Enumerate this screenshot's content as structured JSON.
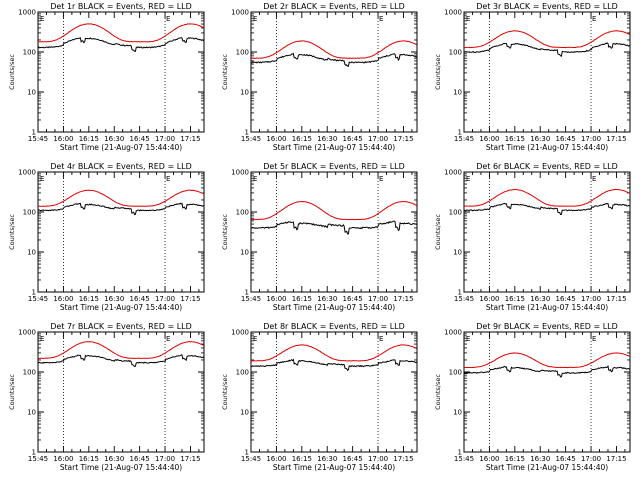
{
  "chart_data": [
    {
      "type": "line",
      "title": "Det 1r BLACK = Events, RED = LLD",
      "ylabel": "Counts/sec",
      "xlabel": "Start Time (21-Aug-07 15:44:40)",
      "x_tick_labels": [
        "15:45",
        "16:00",
        "16:15",
        "16:30",
        "16:45",
        "17:00",
        "17:15"
      ],
      "x_ticks_min": [
        0,
        15,
        30,
        45,
        60,
        75,
        90
      ],
      "xlim": [
        0,
        98
      ],
      "y_scale": "log",
      "ylim": [
        1,
        1000
      ],
      "y_tick_labels": [
        "1",
        "10",
        "100",
        "1000"
      ],
      "marker_times_min": [
        15,
        75
      ],
      "marker_label": "E",
      "series": [
        {
          "name": "BLACK",
          "color": "#000000",
          "base": 130,
          "amp": 1.7,
          "dip": 0.2,
          "noise": 0.06
        },
        {
          "name": "RED",
          "color": "#e00000",
          "base": 180,
          "amp": 2.8,
          "dip": 0,
          "noise": 0.02
        }
      ]
    },
    {
      "type": "line",
      "title": "Det 2r BLACK = Events, RED = LLD",
      "ylabel": "Counts/sec",
      "xlabel": "Start Time (21-Aug-07 15:44:40)",
      "x_tick_labels": [
        "15:45",
        "16:00",
        "16:15",
        "16:30",
        "16:45",
        "17:00",
        "17:15"
      ],
      "x_ticks_min": [
        0,
        15,
        30,
        45,
        60,
        75,
        90
      ],
      "xlim": [
        0,
        98
      ],
      "y_scale": "log",
      "ylim": [
        1,
        1000
      ],
      "y_tick_labels": [
        "1",
        "10",
        "100",
        "1000"
      ],
      "marker_times_min": [
        15,
        75
      ],
      "marker_label": "E",
      "series": [
        {
          "name": "BLACK",
          "color": "#000000",
          "base": 55,
          "amp": 1.55,
          "dip": 0.22,
          "noise": 0.07
        },
        {
          "name": "RED",
          "color": "#e00000",
          "base": 70,
          "amp": 2.7,
          "dip": 0,
          "noise": 0.02
        }
      ]
    },
    {
      "type": "line",
      "title": "Det 3r BLACK = Events, RED = LLD",
      "ylabel": "Counts/sec",
      "xlabel": "Start Time (21-Aug-07 15:44:40)",
      "x_tick_labels": [
        "15:45",
        "16:00",
        "16:15",
        "16:30",
        "16:45",
        "17:00",
        "17:15"
      ],
      "x_ticks_min": [
        0,
        15,
        30,
        45,
        60,
        75,
        90
      ],
      "xlim": [
        0,
        98
      ],
      "y_scale": "log",
      "ylim": [
        1,
        1000
      ],
      "y_tick_labels": [
        "1",
        "10",
        "100",
        "1000"
      ],
      "marker_times_min": [
        15,
        75
      ],
      "marker_label": "E",
      "series": [
        {
          "name": "BLACK",
          "color": "#000000",
          "base": 100,
          "amp": 1.6,
          "dip": 0.2,
          "noise": 0.06
        },
        {
          "name": "RED",
          "color": "#e00000",
          "base": 130,
          "amp": 2.6,
          "dip": 0,
          "noise": 0.02
        }
      ]
    },
    {
      "type": "line",
      "title": "Det 4r BLACK = Events, RED = LLD",
      "ylabel": "Counts/sec",
      "xlabel": "Start Time (21-Aug-07 15:44:40)",
      "x_tick_labels": [
        "15:45",
        "16:00",
        "16:15",
        "16:30",
        "16:45",
        "17:00",
        "17:15"
      ],
      "x_ticks_min": [
        0,
        15,
        30,
        45,
        60,
        75,
        90
      ],
      "xlim": [
        0,
        98
      ],
      "y_scale": "log",
      "ylim": [
        1,
        1000
      ],
      "y_tick_labels": [
        "1",
        "10",
        "100",
        "1000"
      ],
      "marker_times_min": [
        15,
        75
      ],
      "marker_label": "E",
      "series": [
        {
          "name": "BLACK",
          "color": "#000000",
          "base": 110,
          "amp": 1.4,
          "dip": 0.22,
          "noise": 0.06
        },
        {
          "name": "RED",
          "color": "#e00000",
          "base": 140,
          "amp": 2.5,
          "dip": 0,
          "noise": 0.02
        }
      ]
    },
    {
      "type": "line",
      "title": "Det 5r BLACK = Events, RED = LLD",
      "ylabel": "Counts/sec",
      "xlabel": "Start Time (21-Aug-07 15:44:40)",
      "x_tick_labels": [
        "15:45",
        "16:00",
        "16:15",
        "16:30",
        "16:45",
        "17:00",
        "17:15"
      ],
      "x_ticks_min": [
        0,
        15,
        30,
        45,
        60,
        75,
        90
      ],
      "xlim": [
        0,
        98
      ],
      "y_scale": "log",
      "ylim": [
        1,
        1000
      ],
      "y_tick_labels": [
        "1",
        "10",
        "100",
        "1000"
      ],
      "marker_times_min": [
        15,
        75
      ],
      "marker_label": "E",
      "series": [
        {
          "name": "BLACK",
          "color": "#000000",
          "base": 40,
          "amp": 1.3,
          "dip": 0.3,
          "noise": 0.08
        },
        {
          "name": "RED",
          "color": "#e00000",
          "base": 65,
          "amp": 2.8,
          "dip": 0,
          "noise": 0.02
        }
      ]
    },
    {
      "type": "line",
      "title": "Det 6r BLACK = Events, RED = LLD",
      "ylabel": "Counts/sec",
      "xlabel": "Start Time (21-Aug-07 15:44:40)",
      "x_tick_labels": [
        "15:45",
        "16:00",
        "16:15",
        "16:30",
        "16:45",
        "17:00",
        "17:15"
      ],
      "x_ticks_min": [
        0,
        15,
        30,
        45,
        60,
        75,
        90
      ],
      "xlim": [
        0,
        98
      ],
      "y_scale": "log",
      "ylim": [
        1,
        1000
      ],
      "y_tick_labels": [
        "1",
        "10",
        "100",
        "1000"
      ],
      "marker_times_min": [
        15,
        75
      ],
      "marker_label": "E",
      "series": [
        {
          "name": "BLACK",
          "color": "#000000",
          "base": 110,
          "amp": 1.4,
          "dip": 0.2,
          "noise": 0.06
        },
        {
          "name": "RED",
          "color": "#e00000",
          "base": 140,
          "amp": 2.6,
          "dip": 0,
          "noise": 0.02
        }
      ]
    },
    {
      "type": "line",
      "title": "Det 7r BLACK = Events, RED = LLD",
      "ylabel": "Counts/sec",
      "xlabel": "Start Time (21-Aug-07 15:44:40)",
      "x_tick_labels": [
        "15:45",
        "16:00",
        "16:15",
        "16:30",
        "16:45",
        "17:00",
        "17:15"
      ],
      "x_ticks_min": [
        0,
        15,
        30,
        45,
        60,
        75,
        90
      ],
      "xlim": [
        0,
        98
      ],
      "y_scale": "log",
      "ylim": [
        1,
        1000
      ],
      "y_tick_labels": [
        "1",
        "10",
        "100",
        "1000"
      ],
      "marker_times_min": [
        15,
        75
      ],
      "marker_label": "E",
      "series": [
        {
          "name": "BLACK",
          "color": "#000000",
          "base": 170,
          "amp": 1.5,
          "dip": 0.2,
          "noise": 0.06
        },
        {
          "name": "RED",
          "color": "#e00000",
          "base": 220,
          "amp": 2.6,
          "dip": 0,
          "noise": 0.02
        }
      ]
    },
    {
      "type": "line",
      "title": "Det 8r BLACK = Events, RED = LLD",
      "ylabel": "Counts/sec",
      "xlabel": "Start Time (21-Aug-07 15:44:40)",
      "x_tick_labels": [
        "15:45",
        "16:00",
        "16:15",
        "16:30",
        "16:45",
        "17:00",
        "17:15"
      ],
      "x_ticks_min": [
        0,
        15,
        30,
        45,
        60,
        75,
        90
      ],
      "xlim": [
        0,
        98
      ],
      "y_scale": "log",
      "ylim": [
        1,
        1000
      ],
      "y_tick_labels": [
        "1",
        "10",
        "100",
        "1000"
      ],
      "marker_times_min": [
        15,
        75
      ],
      "marker_label": "E",
      "series": [
        {
          "name": "BLACK",
          "color": "#000000",
          "base": 140,
          "amp": 1.35,
          "dip": 0.2,
          "noise": 0.06
        },
        {
          "name": "RED",
          "color": "#e00000",
          "base": 190,
          "amp": 2.5,
          "dip": 0,
          "noise": 0.02
        }
      ]
    },
    {
      "type": "line",
      "title": "Det 9r BLACK = Events, RED = LLD",
      "ylabel": "Counts/sec",
      "xlabel": "Start Time (21-Aug-07 15:44:40)",
      "x_tick_labels": [
        "15:45",
        "16:00",
        "16:15",
        "16:30",
        "16:45",
        "17:00",
        "17:15"
      ],
      "x_ticks_min": [
        0,
        15,
        30,
        45,
        60,
        75,
        90
      ],
      "xlim": [
        0,
        98
      ],
      "y_scale": "log",
      "ylim": [
        1,
        1000
      ],
      "y_tick_labels": [
        "1",
        "10",
        "100",
        "1000"
      ],
      "marker_times_min": [
        15,
        75
      ],
      "marker_label": "E",
      "series": [
        {
          "name": "BLACK",
          "color": "#000000",
          "base": 95,
          "amp": 1.35,
          "dip": 0.2,
          "noise": 0.06
        },
        {
          "name": "RED",
          "color": "#e00000",
          "base": 130,
          "amp": 2.3,
          "dip": 0,
          "noise": 0.02
        }
      ]
    }
  ]
}
